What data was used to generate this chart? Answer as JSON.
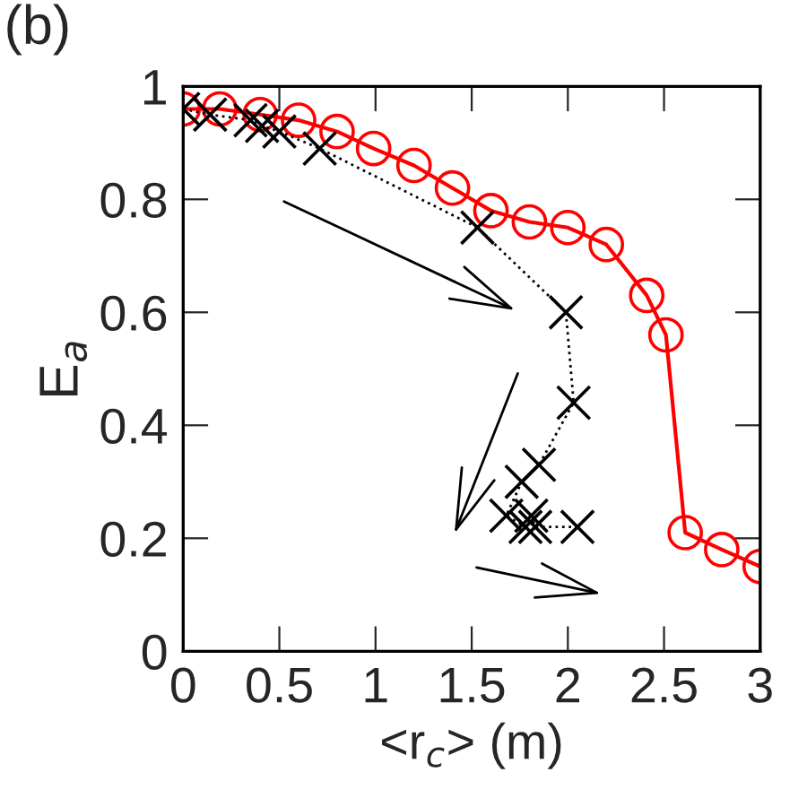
{
  "chart_data": {
    "type": "line",
    "title": "(b)",
    "xlabel": "<r$_{c}$> (m)",
    "ylabel": "E$_{a}$",
    "xlim": [
      0,
      3
    ],
    "xticks": [
      0,
      0.5,
      1,
      1.5,
      2,
      2.5,
      3
    ],
    "ylim": [
      0,
      1
    ],
    "yticks": [
      0,
      0.2,
      0.4,
      0.6,
      0.8,
      1
    ],
    "grid": false,
    "legend": false,
    "series": [
      {
        "color": "#ff0000",
        "marker": "circle",
        "line_style": "solid",
        "x": [
          0,
          0.19,
          0.4,
          0.6,
          0.8,
          0.99,
          1.2,
          1.4,
          1.6,
          1.8,
          2.0,
          2.2,
          2.41,
          2.51,
          2.61,
          2.8,
          3.0
        ],
        "values": [
          0.96,
          0.96,
          0.95,
          0.94,
          0.92,
          0.89,
          0.86,
          0.82,
          0.78,
          0.76,
          0.75,
          0.72,
          0.63,
          0.56,
          0.21,
          0.18,
          0.15
        ]
      },
      {
        "color": "#000000",
        "marker": "cross",
        "line_style": "dotted",
        "x": [
          0,
          0.14,
          0.35,
          0.41,
          0.5,
          0.71,
          1.53,
          1.99,
          2.03,
          1.85,
          1.76,
          1.68,
          1.78,
          1.81,
          1.83,
          2.05
        ],
        "values": [
          0.96,
          0.95,
          0.94,
          0.93,
          0.92,
          0.89,
          0.75,
          0.6,
          0.44,
          0.33,
          0.3,
          0.24,
          0.22,
          0.24,
          0.22,
          0.22
        ]
      }
    ]
  }
}
